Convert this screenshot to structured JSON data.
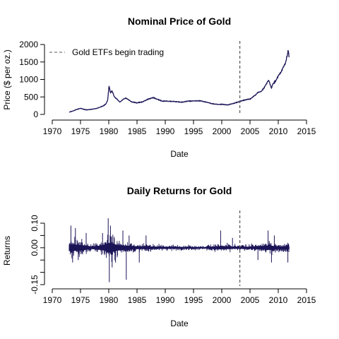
{
  "colors": {
    "series": "#1a1457",
    "vline": "#555555",
    "axis": "#000000"
  },
  "chart_data": [
    {
      "type": "line",
      "title": "Nominal Price of Gold",
      "xlabel": "Date",
      "ylabel": "Price ($ per oz.)",
      "xlim": [
        1970,
        2015
      ],
      "ylim": [
        0,
        2000
      ],
      "x_ticks": [
        1970,
        1975,
        1980,
        1985,
        1990,
        1995,
        2000,
        2005,
        2010,
        2015
      ],
      "y_ticks": [
        0,
        500,
        1000,
        1500,
        2000
      ],
      "grid": false,
      "legend": {
        "position": "top-left",
        "entries": [
          {
            "label": "Gold ETFs begin trading",
            "style": "dashed"
          }
        ]
      },
      "vline": {
        "x": 2003.2,
        "style": "dashed"
      },
      "series": [
        {
          "x": [
            1973.0,
            1973.5,
            1974.0,
            1974.5,
            1975.0,
            1975.5,
            1976.0,
            1976.7,
            1977.5,
            1978.0,
            1978.5,
            1979.0,
            1979.5,
            1979.8,
            1980.05,
            1980.3,
            1980.6,
            1981.0,
            1981.5,
            1982.0,
            1982.5,
            1983.0,
            1983.5,
            1984.0,
            1985.0,
            1986.0,
            1987.0,
            1987.9,
            1988.5,
            1989.5,
            1990.5,
            1991.5,
            1993.0,
            1994.0,
            1995.0,
            1996.0,
            1996.5,
            1997.5,
            1998.5,
            1999.5,
            2000.0,
            2001.0,
            2002.0,
            2003.0,
            2004.0,
            2005.0,
            2006.0,
            2006.5,
            2007.0,
            2007.5,
            2008.0,
            2008.3,
            2008.8,
            2009.0,
            2009.5,
            2010.0,
            2010.5,
            2011.0,
            2011.3,
            2011.6,
            2011.75,
            2011.9
          ],
          "values": [
            65,
            90,
            120,
            150,
            175,
            150,
            130,
            140,
            160,
            180,
            210,
            240,
            300,
            400,
            820,
            620,
            670,
            500,
            430,
            350,
            430,
            470,
            420,
            360,
            330,
            360,
            440,
            480,
            440,
            380,
            380,
            370,
            350,
            380,
            385,
            390,
            380,
            340,
            300,
            280,
            290,
            270,
            310,
            360,
            410,
            440,
            560,
            640,
            660,
            760,
            900,
            980,
            750,
            860,
            950,
            1100,
            1220,
            1380,
            1480,
            1700,
            1850,
            1650
          ],
          "noise": 18
        }
      ]
    },
    {
      "type": "line",
      "title": "Daily Returns for Gold",
      "xlabel": "Date",
      "ylabel": "Returns",
      "xlim": [
        1970,
        2015
      ],
      "ylim": [
        -0.15,
        0.1
      ],
      "x_ticks": [
        1970,
        1975,
        1980,
        1985,
        1990,
        1995,
        2000,
        2005,
        2010,
        2015
      ],
      "y_ticks": [
        -0.15,
        -0.1,
        -0.05,
        0.0,
        0.05,
        0.1
      ],
      "y_tick_labels": [
        "-0.15",
        "",
        "",
        "0.00",
        "",
        "0.10"
      ],
      "grid": false,
      "vline": {
        "x": 2003.2,
        "style": "dashed"
      },
      "series": [
        {
          "x_range": [
            1973.0,
            2011.9
          ],
          "volatility_profile": [
            {
              "x": 1973.0,
              "amp": 0.03
            },
            {
              "x": 1975.0,
              "amp": 0.025
            },
            {
              "x": 1977.0,
              "amp": 0.012
            },
            {
              "x": 1979.0,
              "amp": 0.022
            },
            {
              "x": 1980.2,
              "amp": 0.045
            },
            {
              "x": 1981.5,
              "amp": 0.025
            },
            {
              "x": 1983.0,
              "amp": 0.02
            },
            {
              "x": 1985.0,
              "amp": 0.013
            },
            {
              "x": 1987.0,
              "amp": 0.012
            },
            {
              "x": 1990.0,
              "amp": 0.01
            },
            {
              "x": 1993.0,
              "amp": 0.008
            },
            {
              "x": 1997.0,
              "amp": 0.007
            },
            {
              "x": 1999.8,
              "amp": 0.014
            },
            {
              "x": 2002.0,
              "amp": 0.01
            },
            {
              "x": 2005.0,
              "amp": 0.01
            },
            {
              "x": 2008.5,
              "amp": 0.02
            },
            {
              "x": 2010.0,
              "amp": 0.012
            },
            {
              "x": 2011.9,
              "amp": 0.016
            }
          ],
          "spikes": [
            {
              "x": 1973.3,
              "value": 0.09
            },
            {
              "x": 1973.6,
              "value": -0.06
            },
            {
              "x": 1974.1,
              "value": 0.08
            },
            {
              "x": 1974.6,
              "value": -0.05
            },
            {
              "x": 1976.0,
              "value": 0.06
            },
            {
              "x": 1978.9,
              "value": 0.06
            },
            {
              "x": 1979.9,
              "value": 0.12
            },
            {
              "x": 1980.1,
              "value": -0.14
            },
            {
              "x": 1980.3,
              "value": 0.09
            },
            {
              "x": 1980.6,
              "value": -0.08
            },
            {
              "x": 1981.2,
              "value": -0.06
            },
            {
              "x": 1982.5,
              "value": 0.07
            },
            {
              "x": 1983.1,
              "value": -0.13
            },
            {
              "x": 1983.6,
              "value": 0.05
            },
            {
              "x": 1985.4,
              "value": -0.06
            },
            {
              "x": 1986.6,
              "value": 0.05
            },
            {
              "x": 1999.8,
              "value": 0.07
            },
            {
              "x": 2001.9,
              "value": 0.04
            },
            {
              "x": 2006.4,
              "value": -0.05
            },
            {
              "x": 2008.2,
              "value": 0.07
            },
            {
              "x": 2008.8,
              "value": -0.06
            },
            {
              "x": 2009.3,
              "value": 0.05
            },
            {
              "x": 2011.7,
              "value": -0.06
            }
          ]
        }
      ]
    }
  ]
}
